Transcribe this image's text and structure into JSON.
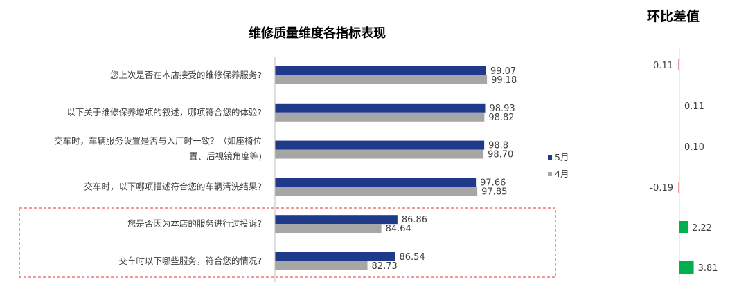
{
  "chart_data": {
    "type": "bar",
    "orientation": "horizontal",
    "title": "维修质量维度各指标表现",
    "categories": [
      [
        "您上次是否在本店接受的维修保养服务?"
      ],
      [
        "以下关于维修保养增项的叙述，哪项符合您的体验?"
      ],
      [
        "交车时，车辆服务设置是否与入厂时一致？（如座椅位",
        "置、后视镜角度等)"
      ],
      [
        "交车时，以下哪项描述符合您的车辆清洗结果?"
      ],
      [
        "您是否因为本店的服务进行过投诉?"
      ],
      [
        "交车时以下哪些服务，符合您的情况?"
      ]
    ],
    "series": [
      {
        "name": "5月",
        "color": "#1f3a8a",
        "values": [
          99.07,
          98.93,
          98.8,
          97.66,
          86.86,
          86.54
        ],
        "labels": [
          "99.07",
          "98.93",
          "98.8",
          "97.66",
          "86.86",
          "86.54"
        ]
      },
      {
        "name": "4月",
        "color": "#a6a6a6",
        "values": [
          99.18,
          98.82,
          98.7,
          97.85,
          84.64,
          82.73
        ],
        "labels": [
          "99.18",
          "98.82",
          "98.70",
          "97.85",
          "84.64",
          "82.73"
        ]
      }
    ],
    "legend_position": "right",
    "highlight_box_categories": [
      4,
      5
    ],
    "diff_chart": {
      "title": "环比差值",
      "values": [
        -0.11,
        0.11,
        0.1,
        -0.19,
        2.22,
        3.81
      ],
      "labels": [
        "-0.11",
        "0.11",
        "0.10",
        "-0.19",
        "2.22",
        "3.81"
      ],
      "positive_color": "#00b050",
      "negative_color": "#e0303a"
    }
  }
}
